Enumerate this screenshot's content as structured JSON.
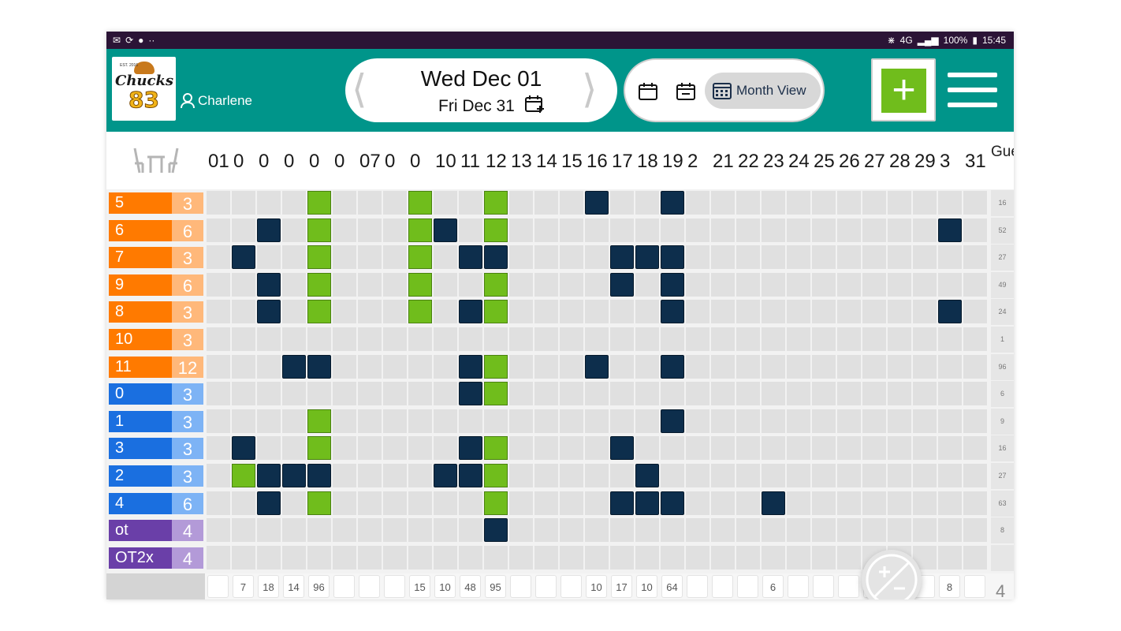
{
  "status_bar": {
    "left_icons": [
      "message-icon",
      "sync-icon",
      "keyhole-icon",
      "more-icon"
    ],
    "right": {
      "bluetooth": "bluetooth-icon",
      "network": "4G",
      "battery": "100%",
      "time": "15:45"
    }
  },
  "header": {
    "logo": {
      "est": "EST. 2016",
      "name": "Chucks",
      "number": "83"
    },
    "user_name": "Charlene",
    "date_start": "Wed Dec 01",
    "date_end": "Fri Dec 31",
    "view_label": "Month View"
  },
  "grid": {
    "day_labels": [
      "01",
      "0",
      "0",
      "0",
      "0",
      "0",
      "07",
      "0",
      "0",
      "10",
      "11",
      "12",
      "13",
      "14",
      "15",
      "16",
      "17",
      "18",
      "19",
      "2",
      "21",
      "22",
      "23",
      "24",
      "25",
      "26",
      "27",
      "28",
      "29",
      "3",
      "31"
    ],
    "guest_header": "Guest",
    "rows": [
      {
        "name": "5",
        "cap": "3",
        "color": "orange",
        "guests": "16",
        "marks": {
          "4": "g",
          "8": "g",
          "11": "g",
          "15": "n",
          "18": "n"
        }
      },
      {
        "name": "6",
        "cap": "6",
        "color": "orange",
        "guests": "52",
        "marks": {
          "2": "n",
          "4": "g",
          "8": "g",
          "9": "n",
          "11": "g",
          "29": "n"
        }
      },
      {
        "name": "7",
        "cap": "3",
        "color": "orange",
        "guests": "27",
        "marks": {
          "1": "n",
          "4": "g",
          "8": "g",
          "10": "n",
          "11": "n",
          "16": "n",
          "17": "n",
          "18": "n"
        }
      },
      {
        "name": "9",
        "cap": "6",
        "color": "orange",
        "guests": "49",
        "marks": {
          "2": "n",
          "4": "g",
          "8": "g",
          "11": "g",
          "16": "n",
          "18": "n"
        }
      },
      {
        "name": "8",
        "cap": "3",
        "color": "orange",
        "guests": "24",
        "marks": {
          "2": "n",
          "4": "g",
          "8": "g",
          "10": "n",
          "11": "g",
          "18": "n",
          "29": "n"
        }
      },
      {
        "name": "10",
        "cap": "3",
        "color": "orange",
        "guests": "1",
        "marks": {}
      },
      {
        "name": "11",
        "cap": "12",
        "color": "orange",
        "guests": "96",
        "marks": {
          "3": "n",
          "4": "n",
          "10": "n",
          "11": "g",
          "15": "n",
          "18": "n"
        }
      },
      {
        "name": "0",
        "cap": "3",
        "color": "blue",
        "guests": "6",
        "marks": {
          "10": "n",
          "11": "g"
        }
      },
      {
        "name": "1",
        "cap": "3",
        "color": "blue",
        "guests": "9",
        "marks": {
          "4": "g",
          "18": "n"
        }
      },
      {
        "name": "3",
        "cap": "3",
        "color": "blue",
        "guests": "16",
        "marks": {
          "1": "n",
          "4": "g",
          "10": "n",
          "11": "g",
          "16": "n"
        }
      },
      {
        "name": "2",
        "cap": "3",
        "color": "blue",
        "guests": "27",
        "marks": {
          "1": "g",
          "2": "n",
          "3": "n",
          "4": "n",
          "9": "n",
          "10": "n",
          "11": "g",
          "17": "n"
        }
      },
      {
        "name": "4",
        "cap": "6",
        "color": "blue",
        "guests": "63",
        "marks": {
          "2": "n",
          "4": "g",
          "11": "g",
          "16": "n",
          "17": "n",
          "18": "n",
          "22": "n"
        }
      },
      {
        "name": "ot",
        "cap": "4",
        "color": "purple",
        "guests": "8",
        "marks": {
          "11": "n"
        }
      },
      {
        "name": "OT2x",
        "cap": "4",
        "color": "purple",
        "guests": "",
        "marks": {}
      }
    ],
    "footer_totals": [
      "",
      "7",
      "18",
      "14",
      "96",
      "",
      "",
      "",
      "15",
      "10",
      "48",
      "95",
      "",
      "",
      "",
      "10",
      "17",
      "10",
      "64",
      "",
      "",
      "",
      "6",
      "",
      "",
      "",
      "",
      "",
      "",
      "8",
      ""
    ],
    "footer_last": "4"
  },
  "colors": {
    "appbar": "#00958a",
    "orange": "#ff7a00",
    "orange_light": "#ffb87a",
    "blue": "#1a6fe0",
    "blue_light": "#7db3f5",
    "purple": "#6a3fa8",
    "purple_light": "#b39ad8",
    "green": "#70bd1c",
    "navy": "#0d2e4c"
  }
}
